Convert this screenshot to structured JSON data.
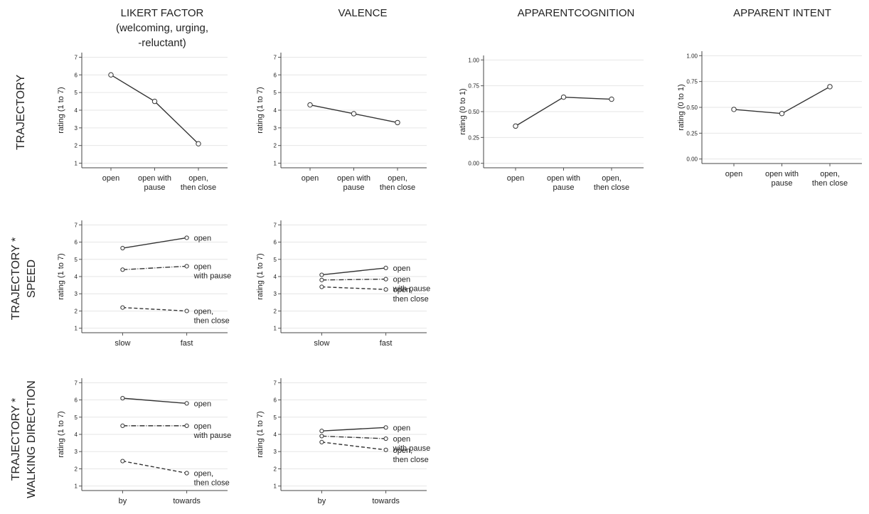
{
  "column_titles": [
    [
      "LIKERT FACTOR",
      "(welcoming, urging,",
      "-reluctant)"
    ],
    [
      "VALENCE"
    ],
    [
      "APPARENTCOGNITION"
    ],
    [
      "APPARENT INTENT"
    ]
  ],
  "row_titles": [
    [
      "TRAJECTORY"
    ],
    [
      "TRAJECTORY *",
      "SPEED"
    ],
    [
      "TRAJECTORY *",
      "WALKING DIRECTION"
    ]
  ],
  "chart_data": [
    {
      "id": "likert-trajectory",
      "type": "line",
      "ylabel": "rating (1 to 7)",
      "ylim": [
        1,
        7
      ],
      "yticks": [
        "1",
        "2",
        "3",
        "4",
        "5",
        "6",
        "7"
      ],
      "categories": [
        [
          "open"
        ],
        [
          "open with",
          "pause"
        ],
        [
          "open,",
          "then close"
        ]
      ],
      "series": [
        {
          "name": "",
          "style": "solid",
          "values": [
            6.0,
            4.5,
            2.1
          ]
        }
      ],
      "grid": "horizontal"
    },
    {
      "id": "valence-trajectory",
      "type": "line",
      "ylabel": "rating (1 to 7)",
      "ylim": [
        1,
        7
      ],
      "yticks": [
        "1",
        "2",
        "3",
        "4",
        "5",
        "6",
        "7"
      ],
      "categories": [
        [
          "open"
        ],
        [
          "open with",
          "pause"
        ],
        [
          "open,",
          "then close"
        ]
      ],
      "series": [
        {
          "name": "",
          "style": "solid",
          "values": [
            4.3,
            3.8,
            3.3
          ]
        }
      ],
      "grid": "horizontal"
    },
    {
      "id": "cognition-trajectory",
      "type": "line",
      "ylabel": "rating (0 to 1)",
      "ylim": [
        0,
        1
      ],
      "yticks": [
        "0.00",
        "0.25",
        "0.50",
        "0.75",
        "1.00"
      ],
      "categories": [
        [
          "open"
        ],
        [
          "open with",
          "pause"
        ],
        [
          "open,",
          "then close"
        ]
      ],
      "series": [
        {
          "name": "",
          "style": "solid",
          "values": [
            0.36,
            0.64,
            0.62
          ]
        }
      ],
      "grid": "horizontal"
    },
    {
      "id": "intent-trajectory",
      "type": "line",
      "ylabel": "rating (0 to 1)",
      "ylim": [
        0,
        1
      ],
      "yticks": [
        "0.00",
        "0.25",
        "0.50",
        "0.75",
        "1.00"
      ],
      "categories": [
        [
          "open"
        ],
        [
          "open with",
          "pause"
        ],
        [
          "open,",
          "then close"
        ]
      ],
      "series": [
        {
          "name": "",
          "style": "solid",
          "values": [
            0.48,
            0.44,
            0.7
          ]
        }
      ],
      "grid": "horizontal"
    },
    {
      "id": "likert-speed",
      "type": "line",
      "ylabel": "rating (1 to 7)",
      "ylim": [
        1,
        7
      ],
      "yticks": [
        "1",
        "2",
        "3",
        "4",
        "5",
        "6",
        "7"
      ],
      "categories": [
        [
          "slow"
        ],
        [
          "fast"
        ]
      ],
      "series": [
        {
          "name": "open",
          "label_lines": [
            "open"
          ],
          "style": "solid",
          "values": [
            5.65,
            6.25
          ]
        },
        {
          "name": "open with pause",
          "label_lines": [
            "open",
            "with pause"
          ],
          "style": "dashdot",
          "values": [
            4.4,
            4.6
          ]
        },
        {
          "name": "open, then close",
          "label_lines": [
            "open,",
            "then close"
          ],
          "style": "dashed",
          "values": [
            2.2,
            2.0
          ]
        }
      ],
      "grid": "horizontal"
    },
    {
      "id": "valence-speed",
      "type": "line",
      "ylabel": "rating (1 to 7)",
      "ylim": [
        1,
        7
      ],
      "yticks": [
        "1",
        "2",
        "3",
        "4",
        "5",
        "6",
        "7"
      ],
      "categories": [
        [
          "slow"
        ],
        [
          "fast"
        ]
      ],
      "series": [
        {
          "name": "open",
          "label_lines": [
            "open"
          ],
          "style": "solid",
          "values": [
            4.1,
            4.5
          ]
        },
        {
          "name": "open with pause",
          "label_lines": [
            "open",
            "with pause"
          ],
          "style": "dashdot",
          "values": [
            3.8,
            3.85
          ]
        },
        {
          "name": "open, then close",
          "label_lines": [
            "open,",
            "then close"
          ],
          "style": "dashed",
          "values": [
            3.4,
            3.25
          ]
        }
      ],
      "grid": "horizontal"
    },
    {
      "id": "likert-direction",
      "type": "line",
      "ylabel": "rating (1 to 7)",
      "ylim": [
        1,
        7
      ],
      "yticks": [
        "1",
        "2",
        "3",
        "4",
        "5",
        "6",
        "7"
      ],
      "categories": [
        [
          "by"
        ],
        [
          "towards"
        ]
      ],
      "series": [
        {
          "name": "open",
          "label_lines": [
            "open"
          ],
          "style": "solid",
          "values": [
            6.1,
            5.8
          ]
        },
        {
          "name": "open with pause",
          "label_lines": [
            "open",
            "with pause"
          ],
          "style": "dashdot",
          "values": [
            4.5,
            4.5
          ]
        },
        {
          "name": "open, then close",
          "label_lines": [
            "open,",
            "then close"
          ],
          "style": "dashed",
          "values": [
            2.45,
            1.75
          ]
        }
      ],
      "grid": "horizontal"
    },
    {
      "id": "valence-direction",
      "type": "line",
      "ylabel": "rating (1 to 7)",
      "ylim": [
        1,
        7
      ],
      "yticks": [
        "1",
        "2",
        "3",
        "4",
        "5",
        "6",
        "7"
      ],
      "categories": [
        [
          "by"
        ],
        [
          "towards"
        ]
      ],
      "series": [
        {
          "name": "open",
          "label_lines": [
            "open"
          ],
          "style": "solid",
          "values": [
            4.2,
            4.4
          ]
        },
        {
          "name": "open with pause",
          "label_lines": [
            "open",
            "with pause"
          ],
          "style": "dashdot",
          "values": [
            3.9,
            3.75
          ]
        },
        {
          "name": "open, then close",
          "label_lines": [
            "open,",
            "then close"
          ],
          "style": "dashed",
          "values": [
            3.55,
            3.1
          ]
        }
      ],
      "grid": "horizontal"
    }
  ]
}
